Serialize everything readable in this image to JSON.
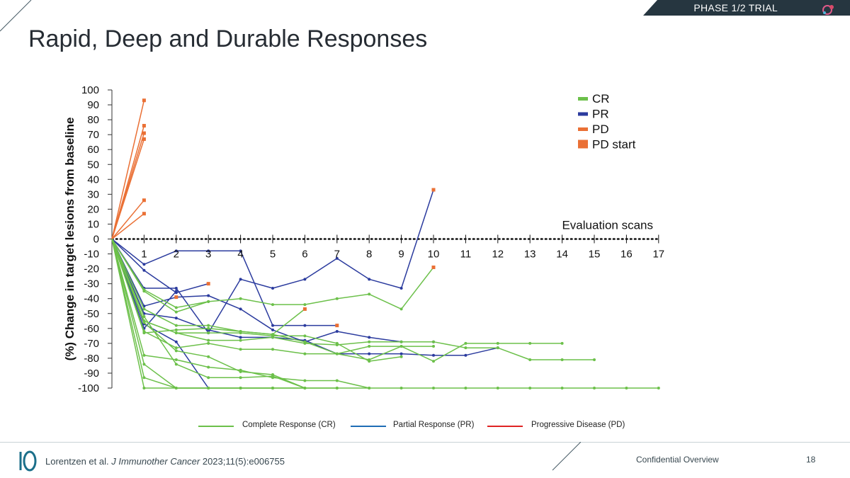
{
  "header": {
    "phase_label": "PHASE 1/2 TRIAL",
    "title": "Rapid, Deep and Durable Responses"
  },
  "colors": {
    "cr": "#6cc04a",
    "pr": "#2b3b9e",
    "pd": "#ea7035",
    "banner": "#263640",
    "footer_accent": "#1b6f8a",
    "legend_cr_line": "#6cc04a",
    "legend_pr_line": "#1f6db5",
    "legend_pd_line": "#e02424"
  },
  "chart_data": {
    "type": "line",
    "ylabel": "(%) Change in target lesions from baseline",
    "xlabel": "Evaluation scans",
    "ylim": [
      -100,
      100
    ],
    "yticks": [
      100,
      90,
      80,
      70,
      60,
      50,
      40,
      30,
      20,
      10,
      0,
      -10,
      -20,
      -30,
      -40,
      -50,
      -60,
      -70,
      -80,
      -90,
      -100
    ],
    "xticks": [
      1,
      2,
      3,
      4,
      5,
      6,
      7,
      8,
      9,
      10,
      11,
      12,
      13,
      14,
      15,
      16,
      17
    ],
    "xlim": [
      0,
      17
    ],
    "legend": [
      {
        "label": "CR",
        "key": "cr"
      },
      {
        "label": "PR",
        "key": "pr"
      },
      {
        "label": "PD",
        "key": "pd"
      },
      {
        "label": "PD start",
        "key": "pdstart"
      }
    ],
    "series": [
      {
        "group": "pd",
        "points": [
          [
            0,
            0
          ],
          [
            1,
            93
          ]
        ]
      },
      {
        "group": "pd",
        "points": [
          [
            0,
            0
          ],
          [
            1,
            76
          ]
        ]
      },
      {
        "group": "pd",
        "points": [
          [
            0,
            0
          ],
          [
            1,
            71
          ]
        ]
      },
      {
        "group": "pd",
        "points": [
          [
            0,
            0
          ],
          [
            1,
            67
          ]
        ]
      },
      {
        "group": "pd",
        "points": [
          [
            0,
            0
          ],
          [
            1,
            26
          ]
        ]
      },
      {
        "group": "pd",
        "points": [
          [
            0,
            0
          ],
          [
            1,
            17
          ]
        ]
      },
      {
        "group": "pr",
        "points": [
          [
            0,
            0
          ],
          [
            1,
            -17
          ],
          [
            2,
            -8
          ],
          [
            3,
            -8
          ],
          [
            4,
            -8
          ],
          [
            5,
            -58
          ],
          [
            6,
            -58
          ],
          [
            7,
            -58
          ]
        ]
      },
      {
        "group": "pr",
        "points": [
          [
            0,
            0
          ],
          [
            1,
            -21
          ],
          [
            2,
            -36
          ],
          [
            3,
            -30
          ]
        ]
      },
      {
        "group": "pr",
        "points": [
          [
            0,
            0
          ],
          [
            1,
            -33
          ],
          [
            2,
            -33
          ],
          [
            3,
            -63
          ],
          [
            4,
            -27
          ],
          [
            5,
            -33
          ],
          [
            6,
            -27
          ],
          [
            7,
            -13
          ],
          [
            8,
            -27
          ],
          [
            9,
            -33
          ],
          [
            10,
            33
          ]
        ]
      },
      {
        "group": "pr",
        "points": [
          [
            0,
            0
          ],
          [
            1,
            -45
          ],
          [
            2,
            -39
          ],
          [
            3,
            -38
          ],
          [
            4,
            -47
          ],
          [
            5,
            -61
          ],
          [
            6,
            -69
          ],
          [
            7,
            -62
          ],
          [
            8,
            -66
          ],
          [
            9,
            -69
          ],
          [
            10,
            -69
          ]
        ]
      },
      {
        "group": "pr",
        "points": [
          [
            0,
            0
          ],
          [
            1,
            -50
          ],
          [
            2,
            -53
          ],
          [
            3,
            -61
          ],
          [
            4,
            -66
          ],
          [
            5,
            -66
          ],
          [
            6,
            -68
          ],
          [
            7,
            -77
          ],
          [
            8,
            -77
          ],
          [
            9,
            -77
          ],
          [
            10,
            -78
          ],
          [
            11,
            -78
          ],
          [
            12,
            -73
          ]
        ]
      },
      {
        "group": "pr",
        "points": [
          [
            0,
            0
          ],
          [
            1,
            -57
          ],
          [
            2,
            -69
          ],
          [
            3,
            -100
          ]
        ]
      },
      {
        "group": "pr",
        "points": [
          [
            0,
            0
          ],
          [
            1,
            -60
          ],
          [
            2,
            -35
          ]
        ]
      },
      {
        "group": "cr",
        "points": [
          [
            0,
            0
          ],
          [
            1,
            -35
          ],
          [
            2,
            -49
          ],
          [
            3,
            -42
          ],
          [
            4,
            -40
          ],
          [
            5,
            -44
          ],
          [
            6,
            -44
          ],
          [
            7,
            -40
          ],
          [
            8,
            -37
          ],
          [
            9,
            -47
          ],
          [
            10,
            -19
          ]
        ]
      },
      {
        "group": "cr",
        "points": [
          [
            0,
            0
          ],
          [
            1,
            -34
          ],
          [
            2,
            -46
          ],
          [
            3,
            -42
          ]
        ]
      },
      {
        "group": "cr",
        "points": [
          [
            0,
            0
          ],
          [
            1,
            -47
          ],
          [
            2,
            -58
          ],
          [
            3,
            -58
          ],
          [
            4,
            -62
          ],
          [
            5,
            -64
          ],
          [
            6,
            -47
          ]
        ]
      },
      {
        "group": "cr",
        "points": [
          [
            0,
            0
          ],
          [
            1,
            -55
          ],
          [
            2,
            -63
          ],
          [
            3,
            -63
          ],
          [
            4,
            -63
          ],
          [
            5,
            -65
          ],
          [
            6,
            -65
          ],
          [
            7,
            -70
          ],
          [
            8,
            -82
          ],
          [
            9,
            -79
          ]
        ]
      },
      {
        "group": "cr",
        "points": [
          [
            0,
            0
          ],
          [
            1,
            -55
          ],
          [
            2,
            -63
          ],
          [
            3,
            -68
          ],
          [
            4,
            -68
          ],
          [
            5,
            -66
          ],
          [
            6,
            -70
          ],
          [
            7,
            -71
          ],
          [
            8,
            -69
          ],
          [
            9,
            -69
          ],
          [
            10,
            -69
          ],
          [
            11,
            -73
          ],
          [
            12,
            -73
          ],
          [
            13,
            -81
          ],
          [
            14,
            -81
          ],
          [
            15,
            -81
          ]
        ]
      },
      {
        "group": "cr",
        "points": [
          [
            0,
            0
          ],
          [
            1,
            -63
          ],
          [
            2,
            -61
          ],
          [
            3,
            -60
          ],
          [
            4,
            -62
          ],
          [
            5,
            -64
          ],
          [
            6,
            -69
          ],
          [
            7,
            -77
          ],
          [
            8,
            -81
          ],
          [
            9,
            -72
          ],
          [
            10,
            -82
          ],
          [
            11,
            -70
          ],
          [
            12,
            -70
          ],
          [
            13,
            -70
          ],
          [
            14,
            -70
          ]
        ]
      },
      {
        "group": "cr",
        "points": [
          [
            0,
            0
          ],
          [
            1,
            -62
          ],
          [
            2,
            -73
          ],
          [
            3,
            -70
          ],
          [
            4,
            -74
          ],
          [
            5,
            -74
          ],
          [
            6,
            -77
          ],
          [
            7,
            -77
          ],
          [
            8,
            -72
          ],
          [
            9,
            -72
          ],
          [
            10,
            -72
          ]
        ]
      },
      {
        "group": "cr",
        "points": [
          [
            0,
            0
          ],
          [
            1,
            -78
          ],
          [
            2,
            -81
          ],
          [
            3,
            -86
          ],
          [
            4,
            -88
          ],
          [
            5,
            -93
          ],
          [
            6,
            -95
          ],
          [
            7,
            -95
          ],
          [
            8,
            -100
          ],
          [
            9,
            -100
          ],
          [
            10,
            -100
          ],
          [
            11,
            -100
          ],
          [
            12,
            -100
          ],
          [
            13,
            -100
          ],
          [
            14,
            -100
          ],
          [
            15,
            -100
          ],
          [
            16,
            -100
          ],
          [
            17,
            -100
          ]
        ]
      },
      {
        "group": "cr",
        "points": [
          [
            0,
            0
          ],
          [
            1,
            -84
          ],
          [
            2,
            -100
          ],
          [
            3,
            -100
          ],
          [
            4,
            -100
          ],
          [
            5,
            -100
          ],
          [
            6,
            -100
          ],
          [
            7,
            -100
          ]
        ]
      },
      {
        "group": "cr",
        "points": [
          [
            0,
            0
          ],
          [
            1,
            -93
          ],
          [
            2,
            -100
          ],
          [
            3,
            -100
          ],
          [
            4,
            -100
          ],
          [
            5,
            -100
          ]
        ]
      },
      {
        "group": "cr",
        "points": [
          [
            0,
            0
          ],
          [
            1,
            -100
          ],
          [
            2,
            -100
          ],
          [
            3,
            -100
          ],
          [
            4,
            -100
          ],
          [
            5,
            -100
          ],
          [
            6,
            -100
          ],
          [
            7,
            -100
          ],
          [
            8,
            -100
          ]
        ]
      },
      {
        "group": "cr",
        "points": [
          [
            0,
            0
          ],
          [
            1,
            -56
          ],
          [
            2,
            -75
          ],
          [
            3,
            -79
          ],
          [
            4,
            -89
          ],
          [
            5,
            -91
          ],
          [
            6,
            -100
          ]
        ]
      },
      {
        "group": "cr",
        "points": [
          [
            0,
            0
          ],
          [
            1,
            -52
          ],
          [
            2,
            -84
          ],
          [
            3,
            -93
          ],
          [
            4,
            -93
          ],
          [
            5,
            -92
          ],
          [
            6,
            -100
          ]
        ]
      }
    ],
    "pd_start_markers": [
      [
        1,
        93
      ],
      [
        1,
        76
      ],
      [
        1,
        71
      ],
      [
        1,
        67
      ],
      [
        1,
        26
      ],
      [
        1,
        17
      ],
      [
        3,
        -30
      ],
      [
        10,
        33
      ],
      [
        10,
        -19
      ],
      [
        6,
        -47
      ],
      [
        7,
        -58
      ],
      [
        2,
        -39
      ]
    ]
  },
  "bottom_legend": [
    {
      "label": "Complete Response (CR)",
      "key": "legend_cr_line"
    },
    {
      "label": "Partial Response (PR)",
      "key": "legend_pr_line"
    },
    {
      "label": "Progressive Disease (PD)",
      "key": "legend_pd_line"
    }
  ],
  "footer": {
    "citation_prefix": "Lorentzen et al. ",
    "citation_journal": "J Immunother Cancer",
    "citation_suffix": " 2023;11(5):e006755",
    "confidential": "Confidential Overview",
    "page": "18"
  }
}
